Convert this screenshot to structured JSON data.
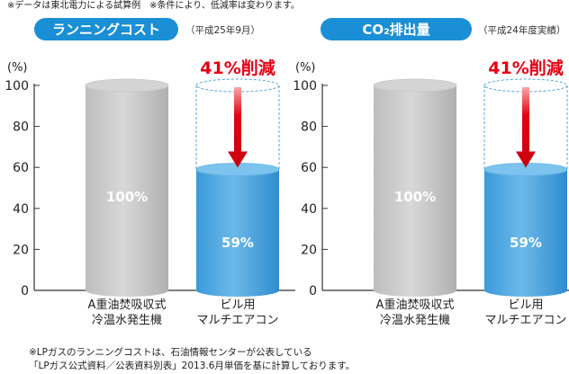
{
  "notes": {
    "top": "※データは東北電力による試算例　※条件により、低減率は変わります。",
    "bottom_line1": "※LPガスのランニングコストは、石油情報センターが公表している",
    "bottom_line2": "「LPガス公式資料／公表資料別表」2013.6月単価を基に計算しております。"
  },
  "colors": {
    "badge": "#1a8fd6",
    "gray_bar": "#c4c4c4",
    "blue_bar": "#4aa6e0",
    "arrow": "#e60012",
    "reduction_text": "#e60012"
  },
  "chart_data": [
    {
      "type": "bar",
      "title": "ランニングコスト",
      "subtitle": "（平成25年9月）",
      "ylabel": "(%)",
      "ylim": [
        0,
        100
      ],
      "yticks": [
        0,
        20,
        40,
        60,
        80,
        100
      ],
      "categories": [
        [
          "A重油焚吸収式",
          "冷温水発生機"
        ],
        [
          "ビル用",
          "マルチエアコン"
        ]
      ],
      "values": [
        100,
        59
      ],
      "value_labels": [
        "100%",
        "59%"
      ],
      "annotation": "41%削減"
    },
    {
      "type": "bar",
      "title": "CO₂排出量",
      "subtitle": "（平成24年度実績）",
      "ylabel": "(%)",
      "ylim": [
        0,
        100
      ],
      "yticks": [
        0,
        20,
        40,
        60,
        80,
        100
      ],
      "categories": [
        [
          "A重油焚吸収式",
          "冷温水発生機"
        ],
        [
          "ビル用",
          "マルチエアコン"
        ]
      ],
      "values": [
        100,
        59
      ],
      "value_labels": [
        "100%",
        "59%"
      ],
      "annotation": "41%削減"
    }
  ]
}
